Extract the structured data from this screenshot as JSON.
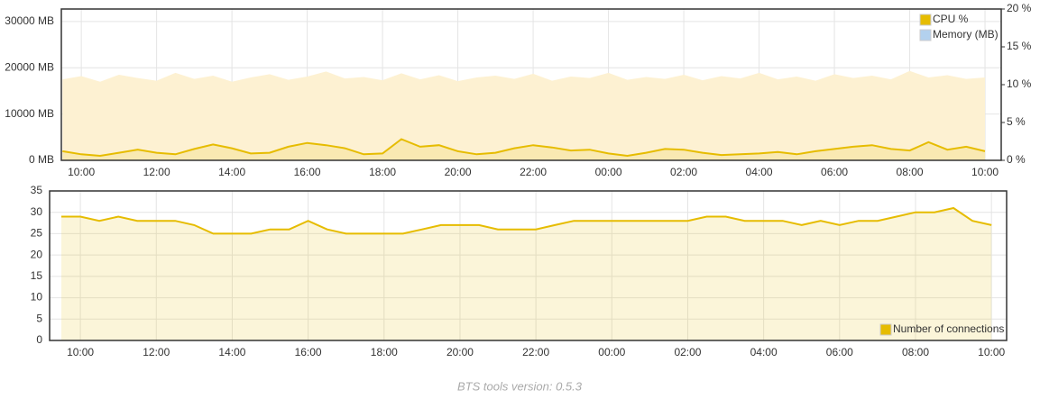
{
  "chart_data": [
    {
      "type": "line",
      "x": [
        9.5,
        10,
        10.5,
        11,
        11.5,
        12,
        12.5,
        13,
        13.5,
        14,
        14.5,
        15,
        15.5,
        16,
        16.5,
        17,
        17.5,
        18,
        18.5,
        19,
        19.5,
        20,
        20.5,
        21,
        21.5,
        22,
        22.5,
        23,
        23.5,
        24,
        24.5,
        25,
        25.5,
        26,
        26.5,
        27,
        27.5,
        28,
        28.5,
        29,
        29.5,
        30,
        30.5,
        31,
        31.5,
        32,
        32.5,
        33,
        33.5,
        34
      ],
      "xlim": [
        9.47,
        34.43
      ],
      "xticks": [
        {
          "value": 10,
          "label": "10:00"
        },
        {
          "value": 12,
          "label": "12:00"
        },
        {
          "value": 14,
          "label": "14:00"
        },
        {
          "value": 16,
          "label": "16:00"
        },
        {
          "value": 18,
          "label": "18:00"
        },
        {
          "value": 20,
          "label": "20:00"
        },
        {
          "value": 22,
          "label": "22:00"
        },
        {
          "value": 24,
          "label": "00:00"
        },
        {
          "value": 26,
          "label": "02:00"
        },
        {
          "value": 28,
          "label": "04:00"
        },
        {
          "value": 30,
          "label": "06:00"
        },
        {
          "value": 32,
          "label": "08:00"
        },
        {
          "value": 34,
          "label": "10:00"
        }
      ],
      "ylim": [
        0,
        32700
      ],
      "yticks": [
        {
          "value": 0,
          "label": "0 MB"
        },
        {
          "value": 10000,
          "label": "10000 MB"
        },
        {
          "value": 20000,
          "label": "20000 MB"
        },
        {
          "value": 30000,
          "label": "30000 MB"
        }
      ],
      "y2lim": [
        0,
        20
      ],
      "y2ticks": [
        {
          "value": 0,
          "label": "0 %"
        },
        {
          "value": 5,
          "label": "5 %"
        },
        {
          "value": 10,
          "label": "10 %"
        },
        {
          "value": 15,
          "label": "15 %"
        },
        {
          "value": 20,
          "label": "20 %"
        }
      ],
      "grid": true,
      "legend": "top-right",
      "series": [
        {
          "name": "CPU %",
          "color": "#e6bc00",
          "axis": "y2",
          "values": [
            1.2,
            0.8,
            0.6,
            1.0,
            1.4,
            1.0,
            0.8,
            1.5,
            2.1,
            1.6,
            0.9,
            1.0,
            1.8,
            2.3,
            2.0,
            1.6,
            0.8,
            0.9,
            2.8,
            1.8,
            2.0,
            1.2,
            0.8,
            1.0,
            1.6,
            2.0,
            1.7,
            1.3,
            1.4,
            0.9,
            0.6,
            1.0,
            1.5,
            1.4,
            1.0,
            0.7,
            0.8,
            0.9,
            1.1,
            0.8,
            1.2,
            1.5,
            1.8,
            2.0,
            1.5,
            1.3,
            2.4,
            1.4,
            1.8,
            1.2
          ]
        },
        {
          "name": "Memory (MB)",
          "color": "#b3d1ee",
          "fill": "#fdf1d2",
          "values": [
            17500,
            18200,
            17000,
            18500,
            17800,
            17200,
            18900,
            17600,
            18300,
            17000,
            17900,
            18600,
            17400,
            18100,
            19200,
            17700,
            18000,
            17300,
            18800,
            17500,
            18400,
            17100,
            17900,
            18300,
            17600,
            18700,
            17200,
            18100,
            17800,
            18900,
            17400,
            18000,
            17600,
            18500,
            17300,
            18200,
            17700,
            18900,
            17500,
            18100,
            17200,
            18600,
            17800,
            18300,
            17500,
            19300,
            17900,
            18400,
            17600,
            17900
          ]
        }
      ]
    },
    {
      "type": "line",
      "x": [
        9.5,
        10,
        10.5,
        11,
        11.5,
        12,
        12.5,
        13,
        13.5,
        14,
        14.5,
        15,
        15.5,
        16,
        16.5,
        17,
        17.5,
        18,
        18.5,
        19,
        19.5,
        20,
        20.5,
        21,
        21.5,
        22,
        22.5,
        23,
        23.5,
        24,
        24.5,
        25,
        25.5,
        26,
        26.5,
        27,
        27.5,
        28,
        28.5,
        29,
        29.5,
        30,
        30.5,
        31,
        31.5,
        32,
        32.5,
        33,
        33.5,
        34
      ],
      "xlim": [
        9.19,
        34.4
      ],
      "xticks": [
        {
          "value": 10,
          "label": "10:00"
        },
        {
          "value": 12,
          "label": "12:00"
        },
        {
          "value": 14,
          "label": "14:00"
        },
        {
          "value": 16,
          "label": "16:00"
        },
        {
          "value": 18,
          "label": "18:00"
        },
        {
          "value": 20,
          "label": "20:00"
        },
        {
          "value": 22,
          "label": "22:00"
        },
        {
          "value": 24,
          "label": "00:00"
        },
        {
          "value": 26,
          "label": "02:00"
        },
        {
          "value": 28,
          "label": "04:00"
        },
        {
          "value": 30,
          "label": "06:00"
        },
        {
          "value": 32,
          "label": "08:00"
        },
        {
          "value": 34,
          "label": "10:00"
        }
      ],
      "ylim": [
        0,
        35
      ],
      "yticks": [
        0,
        5,
        10,
        15,
        20,
        25,
        30,
        35
      ],
      "grid": true,
      "legend": "bottom-right",
      "series": [
        {
          "name": "Number of connections",
          "color": "#e6bc00",
          "values": [
            29,
            29,
            28,
            29,
            28,
            28,
            28,
            27,
            25,
            25,
            25,
            26,
            26,
            28,
            26,
            25,
            25,
            25,
            25,
            26,
            27,
            27,
            27,
            26,
            26,
            26,
            27,
            28,
            28,
            28,
            28,
            28,
            28,
            28,
            29,
            29,
            28,
            28,
            28,
            27,
            28,
            27,
            28,
            28,
            29,
            30,
            30,
            31,
            28,
            27
          ]
        }
      ]
    }
  ],
  "footer": "BTS tools version: 0.5.3"
}
